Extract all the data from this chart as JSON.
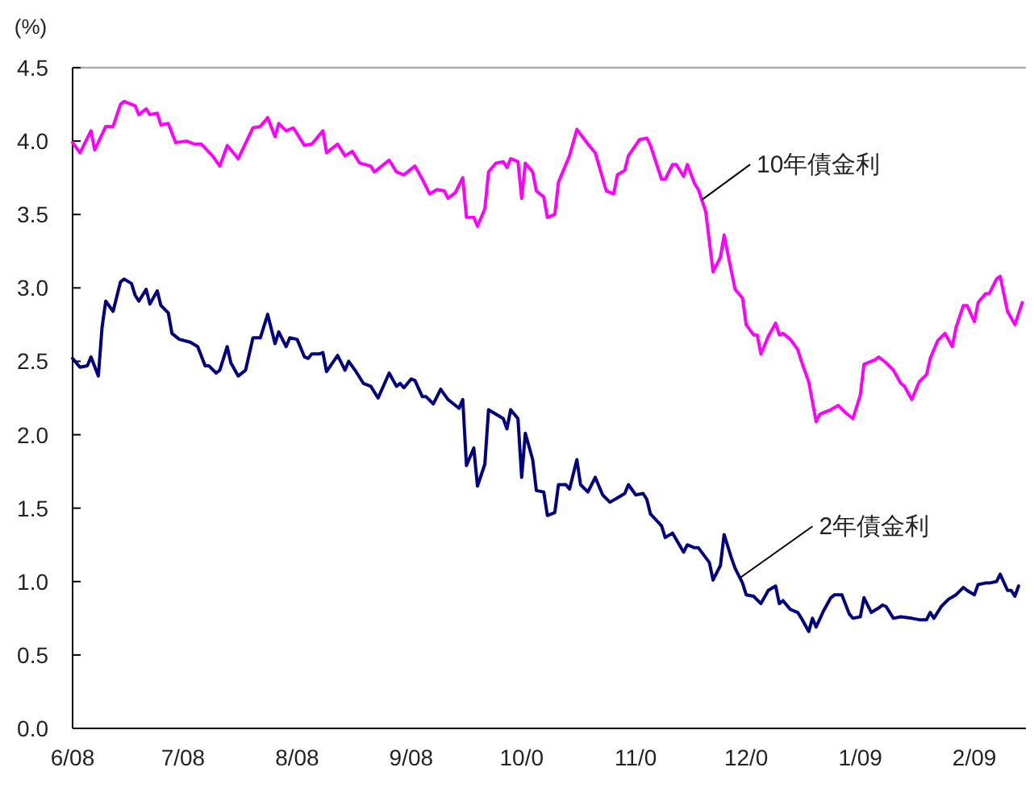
{
  "chart_data": {
    "type": "line",
    "ylabel": "(%)",
    "xlim": [
      "2008-06-01",
      "2009-02-15"
    ],
    "xticks": [
      {
        "value": "2008-06",
        "label": "6/08"
      },
      {
        "value": "2008-07",
        "label": "7/08"
      },
      {
        "value": "2008-08",
        "label": "8/08"
      },
      {
        "value": "2008-09",
        "label": "9/08"
      },
      {
        "value": "2008-10",
        "label": "10/0"
      },
      {
        "value": "2008-11",
        "label": "11/0"
      },
      {
        "value": "2008-12",
        "label": "12/0"
      },
      {
        "value": "2009-01",
        "label": "1/09"
      },
      {
        "value": "2009-02",
        "label": "2/09"
      }
    ],
    "ylim": [
      0,
      4.5
    ],
    "yticks": [
      {
        "value": 0,
        "label": "0.0"
      },
      {
        "value": 0.5,
        "label": "0.5"
      },
      {
        "value": 1,
        "label": "1.0"
      },
      {
        "value": 1.5,
        "label": "1.5"
      },
      {
        "value": 2,
        "label": "2.0"
      },
      {
        "value": 2.5,
        "label": "2.5"
      },
      {
        "value": 3,
        "label": "3.0"
      },
      {
        "value": 3.5,
        "label": "3.5"
      },
      {
        "value": 4,
        "label": "4.0"
      },
      {
        "value": 4.5,
        "label": "4.5"
      }
    ],
    "series": [
      {
        "name": "10年債金利",
        "color": "#ff00ff",
        "x": [
          "2008-06-01",
          "2008-06-03",
          "2008-06-06",
          "2008-06-07",
          "2008-06-10",
          "2008-06-12",
          "2008-06-14",
          "2008-06-15",
          "2008-06-18",
          "2008-06-19",
          "2008-06-21",
          "2008-06-22",
          "2008-06-24",
          "2008-06-25",
          "2008-06-27",
          "2008-06-29",
          "2008-07-02",
          "2008-07-04",
          "2008-07-06",
          "2008-07-09",
          "2008-07-11",
          "2008-07-13",
          "2008-07-16",
          "2008-07-20",
          "2008-07-22",
          "2008-07-24",
          "2008-07-26",
          "2008-07-27",
          "2008-07-29",
          "2008-07-31",
          "2008-08-03",
          "2008-08-05",
          "2008-08-08",
          "2008-08-09",
          "2008-08-12",
          "2008-08-14",
          "2008-08-16",
          "2008-08-18",
          "2008-08-21",
          "2008-08-22",
          "2008-08-26",
          "2008-08-28",
          "2008-08-30",
          "2008-09-02",
          "2008-09-04",
          "2008-09-06",
          "2008-09-08",
          "2008-09-10",
          "2008-09-11",
          "2008-09-13",
          "2008-09-15",
          "2008-09-16",
          "2008-09-18",
          "2008-09-19",
          "2008-09-21",
          "2008-09-22",
          "2008-09-24",
          "2008-09-26",
          "2008-09-27",
          "2008-09-28",
          "2008-09-30",
          "2008-10-01",
          "2008-10-02",
          "2008-10-04",
          "2008-10-05",
          "2008-10-07",
          "2008-10-08",
          "2008-10-10",
          "2008-10-11",
          "2008-10-14",
          "2008-10-16",
          "2008-10-19",
          "2008-10-21",
          "2008-10-24",
          "2008-10-26",
          "2008-10-27",
          "2008-10-29",
          "2008-10-30",
          "2008-11-02",
          "2008-11-04",
          "2008-11-05",
          "2008-11-08",
          "2008-11-09",
          "2008-11-11",
          "2008-11-12",
          "2008-11-14",
          "2008-11-15",
          "2008-11-17",
          "2008-11-18",
          "2008-11-20",
          "2008-11-22",
          "2008-11-24",
          "2008-11-25",
          "2008-11-27",
          "2008-11-28",
          "2008-11-30",
          "2008-12-01",
          "2008-12-03",
          "2008-12-04",
          "2008-12-05",
          "2008-12-07",
          "2008-12-09",
          "2008-12-10",
          "2008-12-11",
          "2008-12-13",
          "2008-12-15",
          "2008-12-16",
          "2008-12-18",
          "2008-12-20",
          "2008-12-21",
          "2008-12-24",
          "2008-12-26",
          "2008-12-28",
          "2008-12-30",
          "2009-01-01",
          "2009-01-02",
          "2009-01-05",
          "2009-01-06",
          "2009-01-08",
          "2009-01-10",
          "2009-01-12",
          "2009-01-13",
          "2009-01-15",
          "2009-01-17",
          "2009-01-19",
          "2009-01-20",
          "2009-01-22",
          "2009-01-24",
          "2009-01-26",
          "2009-01-27",
          "2009-01-29",
          "2009-01-30",
          "2009-02-01",
          "2009-02-02",
          "2009-02-04",
          "2009-02-05",
          "2009-02-07",
          "2009-02-08",
          "2009-02-10",
          "2009-02-12",
          "2009-02-14"
        ],
        "values": [
          3.99,
          3.92,
          4.07,
          3.94,
          4.1,
          4.1,
          4.25,
          4.27,
          4.24,
          4.18,
          4.22,
          4.18,
          4.19,
          4.11,
          4.12,
          3.99,
          4.0,
          3.98,
          3.98,
          3.9,
          3.83,
          3.97,
          3.88,
          4.09,
          4.1,
          4.16,
          4.03,
          4.12,
          4.07,
          4.09,
          3.97,
          3.98,
          4.07,
          3.92,
          3.98,
          3.9,
          3.93,
          3.85,
          3.83,
          3.79,
          3.87,
          3.79,
          3.77,
          3.83,
          3.74,
          3.64,
          3.67,
          3.66,
          3.61,
          3.65,
          3.75,
          3.48,
          3.48,
          3.42,
          3.54,
          3.79,
          3.85,
          3.86,
          3.82,
          3.88,
          3.86,
          3.61,
          3.85,
          3.79,
          3.66,
          3.62,
          3.48,
          3.5,
          3.72,
          3.9,
          4.08,
          3.98,
          3.92,
          3.66,
          3.64,
          3.77,
          3.8,
          3.9,
          4.01,
          4.02,
          3.97,
          3.74,
          3.74,
          3.84,
          3.84,
          3.76,
          3.84,
          3.71,
          3.67,
          3.52,
          3.11,
          3.21,
          3.36,
          3.11,
          2.99,
          2.93,
          2.75,
          2.68,
          2.68,
          2.55,
          2.67,
          2.76,
          2.68,
          2.69,
          2.65,
          2.58,
          2.5,
          2.36,
          2.09,
          2.14,
          2.17,
          2.2,
          2.15,
          2.11,
          2.27,
          2.48,
          2.51,
          2.53,
          2.49,
          2.44,
          2.35,
          2.33,
          2.24,
          2.36,
          2.41,
          2.52,
          2.64,
          2.69,
          2.6,
          2.73,
          2.88,
          2.88,
          2.77,
          2.9,
          2.96,
          2.96,
          3.06,
          3.08,
          2.84,
          2.75,
          2.9
        ]
      },
      {
        "name": "2年債金利",
        "color": "#000080",
        "x": [
          "2008-06-01",
          "2008-06-03",
          "2008-06-05",
          "2008-06-06",
          "2008-06-08",
          "2008-06-09",
          "2008-06-10",
          "2008-06-12",
          "2008-06-14",
          "2008-06-15",
          "2008-06-17",
          "2008-06-18",
          "2008-06-19",
          "2008-06-21",
          "2008-06-22",
          "2008-06-24",
          "2008-06-25",
          "2008-06-27",
          "2008-06-28",
          "2008-06-30",
          "2008-07-03",
          "2008-07-05",
          "2008-07-07",
          "2008-07-08",
          "2008-07-10",
          "2008-07-11",
          "2008-07-13",
          "2008-07-14",
          "2008-07-16",
          "2008-07-18",
          "2008-07-20",
          "2008-07-22",
          "2008-07-24",
          "2008-07-26",
          "2008-07-27",
          "2008-07-29",
          "2008-07-30",
          "2008-08-01",
          "2008-08-03",
          "2008-08-04",
          "2008-08-05",
          "2008-08-07",
          "2008-08-08",
          "2008-08-09",
          "2008-08-12",
          "2008-08-14",
          "2008-08-15",
          "2008-08-17",
          "2008-08-19",
          "2008-08-21",
          "2008-08-23",
          "2008-08-26",
          "2008-08-28",
          "2008-08-29",
          "2008-08-30",
          "2008-09-01",
          "2008-09-02",
          "2008-09-04",
          "2008-09-05",
          "2008-09-07",
          "2008-09-09",
          "2008-09-11",
          "2008-09-12",
          "2008-09-14",
          "2008-09-15",
          "2008-09-16",
          "2008-09-18",
          "2008-09-19",
          "2008-09-21",
          "2008-09-22",
          "2008-09-24",
          "2008-09-26",
          "2008-09-27",
          "2008-09-28",
          "2008-09-30",
          "2008-10-01",
          "2008-10-02",
          "2008-10-04",
          "2008-10-05",
          "2008-10-07",
          "2008-10-08",
          "2008-10-10",
          "2008-10-11",
          "2008-10-13",
          "2008-10-14",
          "2008-10-16",
          "2008-10-17",
          "2008-10-19",
          "2008-10-21",
          "2008-10-23",
          "2008-10-25",
          "2008-10-27",
          "2008-10-29",
          "2008-10-30",
          "2008-11-01",
          "2008-11-03",
          "2008-11-04",
          "2008-11-05",
          "2008-11-08",
          "2008-11-09",
          "2008-11-11",
          "2008-11-14",
          "2008-11-15",
          "2008-11-17",
          "2008-11-18",
          "2008-11-21",
          "2008-11-22",
          "2008-11-24",
          "2008-11-25",
          "2008-11-27",
          "2008-11-28",
          "2008-11-30",
          "2008-12-01",
          "2008-12-03",
          "2008-12-05",
          "2008-12-07",
          "2008-12-09",
          "2008-12-10",
          "2008-12-11",
          "2008-12-13",
          "2008-12-15",
          "2008-12-16",
          "2008-12-18",
          "2008-12-19",
          "2008-12-20",
          "2008-12-22",
          "2008-12-24",
          "2008-12-25",
          "2008-12-27",
          "2008-12-29",
          "2008-12-30",
          "2009-01-01",
          "2009-01-02",
          "2009-01-04",
          "2009-01-06",
          "2009-01-07",
          "2009-01-08",
          "2009-01-10",
          "2009-01-12",
          "2009-01-15",
          "2009-01-17",
          "2009-01-19",
          "2009-01-20",
          "2009-01-21",
          "2009-01-23",
          "2009-01-25",
          "2009-01-27",
          "2009-01-29",
          "2009-01-30",
          "2009-02-01",
          "2009-02-02",
          "2009-02-04",
          "2009-02-05",
          "2009-02-07",
          "2009-02-08",
          "2009-02-10",
          "2009-02-11",
          "2009-02-12",
          "2009-02-13"
        ],
        "values": [
          2.52,
          2.46,
          2.47,
          2.53,
          2.4,
          2.73,
          2.91,
          2.84,
          3.04,
          3.06,
          3.03,
          2.95,
          2.91,
          2.99,
          2.89,
          2.98,
          2.88,
          2.83,
          2.69,
          2.65,
          2.63,
          2.6,
          2.47,
          2.47,
          2.42,
          2.44,
          2.6,
          2.49,
          2.4,
          2.44,
          2.66,
          2.66,
          2.82,
          2.62,
          2.7,
          2.6,
          2.66,
          2.65,
          2.53,
          2.52,
          2.55,
          2.55,
          2.56,
          2.43,
          2.54,
          2.44,
          2.5,
          2.43,
          2.35,
          2.33,
          2.25,
          2.42,
          2.33,
          2.35,
          2.32,
          2.38,
          2.37,
          2.26,
          2.26,
          2.21,
          2.31,
          2.24,
          2.22,
          2.18,
          2.24,
          1.79,
          1.91,
          1.65,
          1.8,
          2.17,
          2.14,
          2.11,
          2.04,
          2.17,
          2.11,
          1.71,
          2.01,
          1.83,
          1.62,
          1.61,
          1.45,
          1.47,
          1.66,
          1.66,
          1.63,
          1.83,
          1.66,
          1.61,
          1.71,
          1.59,
          1.54,
          1.57,
          1.6,
          1.66,
          1.59,
          1.6,
          1.56,
          1.46,
          1.38,
          1.3,
          1.33,
          1.2,
          1.25,
          1.23,
          1.23,
          1.13,
          1.01,
          1.11,
          1.32,
          1.16,
          1.09,
          0.99,
          0.91,
          0.9,
          0.85,
          0.94,
          0.97,
          0.85,
          0.87,
          0.81,
          0.79,
          0.75,
          0.66,
          0.75,
          0.69,
          0.8,
          0.89,
          0.91,
          0.91,
          0.78,
          0.75,
          0.76,
          0.89,
          0.79,
          0.82,
          0.84,
          0.83,
          0.75,
          0.76,
          0.75,
          0.74,
          0.74,
          0.79,
          0.75,
          0.83,
          0.88,
          0.91,
          0.96,
          0.94,
          0.91,
          0.98,
          0.99,
          0.99,
          1.0,
          1.05,
          0.94,
          0.94,
          0.9,
          0.97
        ]
      }
    ]
  }
}
